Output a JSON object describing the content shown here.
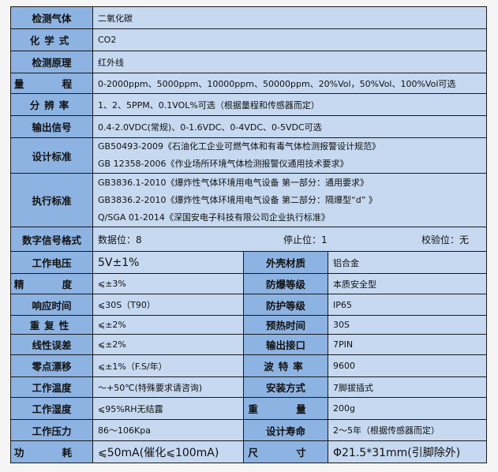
{
  "top_rows": [
    {
      "label": "检测气体",
      "value": "二氧化碳"
    },
    {
      "label": "化学式",
      "value": "CO2"
    },
    {
      "label": "检测原理",
      "value": "红外线"
    },
    {
      "label": "量 程",
      "value": "0-2000ppm、5000ppm、10000ppm、50000ppm、20%Vol，50%Vol、100%Vol可选"
    },
    {
      "label": "分辨率",
      "value": "1、2、5PPM、0.1VOL%可选（根据量程和传感器而定）"
    },
    {
      "label": "输出信号",
      "value": "0.4-2.0VDC(常规)、0-1.6VDC、0-4VDC、0-5VDC可选"
    }
  ],
  "design_standard": {
    "label": "设计标准",
    "lines": [
      "GB50493-2009《石油化工企业可燃气体和有毒气体检测报警设计规范》",
      "GB 12358-2006《作业场所环境气体检测报警仪通用技术要求》"
    ]
  },
  "exec_standard": {
    "label": "执行标准",
    "lines": [
      "GB3836.1-2010《爆炸性气体环境用电气设备 第一部分：通用要求》",
      "GB3836.2-2010《爆炸性气体环境用电气设备 第二部分：隔爆型“d” 》",
      "Q/SGA 01-2014《深国安电子科技有限公司企业执行标准》"
    ]
  },
  "digital": {
    "label": "数字信号格式",
    "data_bits": "数据位：8",
    "stop_bits": "停止位：1",
    "parity": "校验位：无"
  },
  "pair_rows": [
    {
      "k1": "工作电压",
      "v1": "5V±1%",
      "k2": "外壳材质",
      "v2": "铝合金"
    },
    {
      "k1": "精 度",
      "v1": "⩽±3%",
      "k2": "防爆等级",
      "v2": "本质安全型"
    },
    {
      "k1": "响应时间",
      "v1": "⩽30S（T90）",
      "k2": "防护等级",
      "v2": "IP65"
    },
    {
      "k1": "重复性",
      "v1": "⩽±2%",
      "k2": "预热时间",
      "v2": "30S"
    },
    {
      "k1": "线性误差",
      "v1": "⩽±2%",
      "k2": "输出接口",
      "v2": "7PIN"
    },
    {
      "k1": "零点漂移",
      "v1": "⩽±1%（F.S/年）",
      "k2": "波特率",
      "v2": "9600"
    },
    {
      "k1": "工作温度",
      "v1": "～+50℃(特殊要求请咨询)",
      "k2": "安装方式",
      "v2": "7脚拔插式"
    },
    {
      "k1": "工作湿度",
      "v1": "⩽95%RH无结露",
      "k2": "重 量",
      "v2": "200g"
    },
    {
      "k1": "工作压力",
      "v1": "86～106Kpa",
      "k2": "设计寿命",
      "v2": "2～5年（根据传感器而定）"
    },
    {
      "k1": "功 耗",
      "v1": "⩽50mA(催化⩽100mA)",
      "k2": "尺 寸",
      "v2": "Φ21.5*31mm(引脚除外)"
    }
  ]
}
